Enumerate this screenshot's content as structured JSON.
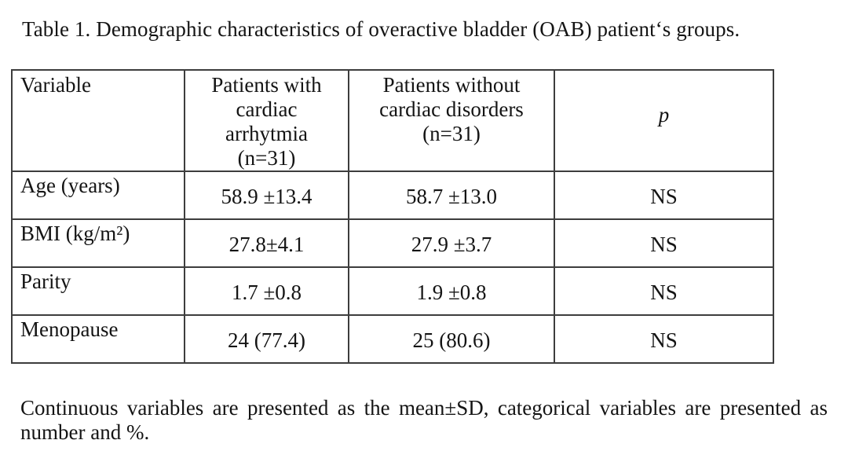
{
  "caption": "Table 1. Demographic characteristics of overactive bladder (OAB) patient‘s groups.",
  "table": {
    "header": {
      "variable": "Variable",
      "group1_lines": [
        "Patients with",
        "cardiac",
        "arrhytmia",
        "(n=31)"
      ],
      "group2_lines": [
        "Patients without",
        "cardiac disorders",
        "(n=31)"
      ],
      "p": "p"
    },
    "rows": [
      {
        "variable": "Age (years)",
        "group1": "58.9 ±13.4",
        "group2": "58.7 ±13.0",
        "p": "NS"
      },
      {
        "variable": "BMI (kg/m²)",
        "group1": "27.8±4.1",
        "group2": "27.9 ±3.7",
        "p": "NS"
      },
      {
        "variable": "Parity",
        "group1": "1.7 ±0.8",
        "group2": "1.9 ±0.8",
        "p": "NS"
      },
      {
        "variable": "Menopause",
        "group1": "24 (77.4)",
        "group2": "25 (80.6)",
        "p": "NS"
      }
    ]
  },
  "footnote": {
    "line1": "Continuous variables are presented as the mean±SD, categorical variables are presented as",
    "line2": "number and %."
  }
}
